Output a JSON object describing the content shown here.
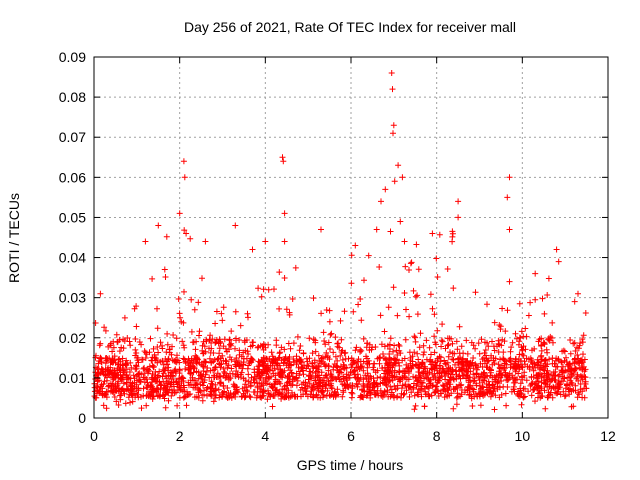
{
  "chart_data": {
    "type": "scatter",
    "title": "Day 256 of 2021, Rate Of TEC Index for receiver mall",
    "xlabel": "GPS time / hours",
    "ylabel": "ROTI / TECUs",
    "xlim": [
      0,
      12
    ],
    "ylim": [
      0,
      0.09
    ],
    "xticks": [
      0,
      2,
      4,
      6,
      8,
      10,
      12
    ],
    "xtick_labels": [
      "0",
      "2",
      "4",
      "6",
      "8",
      "10",
      "12"
    ],
    "yticks": [
      0,
      0.01,
      0.02,
      0.03,
      0.04,
      0.05,
      0.06,
      0.07,
      0.08,
      0.09
    ],
    "ytick_labels": [
      "0",
      "0.01",
      "0.02",
      "0.03",
      "0.04",
      "0.05",
      "0.06",
      "0.07",
      "0.08",
      "0.09"
    ],
    "grid": true,
    "marker": "+",
    "color": "#ff0000",
    "x_data_range": [
      0,
      11.5
    ],
    "envelope_hours": [
      0,
      0.5,
      1,
      1.5,
      2,
      2.5,
      3,
      3.5,
      4,
      4.5,
      5,
      5.5,
      6,
      6.5,
      7,
      7.5,
      8,
      8.5,
      9,
      9.5,
      10,
      10.5,
      11,
      11.5
    ],
    "envelope_typical_max": [
      0.025,
      0.021,
      0.03,
      0.045,
      0.05,
      0.04,
      0.03,
      0.025,
      0.038,
      0.045,
      0.035,
      0.03,
      0.042,
      0.045,
      0.05,
      0.045,
      0.045,
      0.05,
      0.03,
      0.028,
      0.032,
      0.038,
      0.03,
      0.028
    ],
    "baseline_low": 0.005,
    "baseline_mid": 0.011,
    "notable_points": [
      {
        "x": 0.15,
        "y": 0.031
      },
      {
        "x": 1.2,
        "y": 0.044
      },
      {
        "x": 1.5,
        "y": 0.048
      },
      {
        "x": 2.0,
        "y": 0.051
      },
      {
        "x": 2.1,
        "y": 0.064
      },
      {
        "x": 2.12,
        "y": 0.06
      },
      {
        "x": 2.15,
        "y": 0.046
      },
      {
        "x": 2.6,
        "y": 0.044
      },
      {
        "x": 3.3,
        "y": 0.048
      },
      {
        "x": 3.7,
        "y": 0.042
      },
      {
        "x": 4.0,
        "y": 0.044
      },
      {
        "x": 4.4,
        "y": 0.065
      },
      {
        "x": 4.42,
        "y": 0.064
      },
      {
        "x": 4.45,
        "y": 0.051
      },
      {
        "x": 4.45,
        "y": 0.044
      },
      {
        "x": 5.3,
        "y": 0.047
      },
      {
        "x": 6.1,
        "y": 0.043
      },
      {
        "x": 6.6,
        "y": 0.047
      },
      {
        "x": 6.7,
        "y": 0.054
      },
      {
        "x": 6.8,
        "y": 0.057
      },
      {
        "x": 6.95,
        "y": 0.086
      },
      {
        "x": 6.97,
        "y": 0.082
      },
      {
        "x": 7.0,
        "y": 0.073
      },
      {
        "x": 6.98,
        "y": 0.071
      },
      {
        "x": 7.1,
        "y": 0.063
      },
      {
        "x": 7.02,
        "y": 0.059
      },
      {
        "x": 7.2,
        "y": 0.06
      },
      {
        "x": 7.15,
        "y": 0.049
      },
      {
        "x": 7.25,
        "y": 0.044
      },
      {
        "x": 7.9,
        "y": 0.046
      },
      {
        "x": 8.5,
        "y": 0.054
      },
      {
        "x": 8.5,
        "y": 0.05
      },
      {
        "x": 9.7,
        "y": 0.06
      },
      {
        "x": 9.65,
        "y": 0.055
      },
      {
        "x": 9.7,
        "y": 0.047
      },
      {
        "x": 9.7,
        "y": 0.034
      },
      {
        "x": 10.3,
        "y": 0.036
      },
      {
        "x": 10.8,
        "y": 0.042
      },
      {
        "x": 10.85,
        "y": 0.039
      },
      {
        "x": 11.3,
        "y": 0.031
      }
    ]
  }
}
